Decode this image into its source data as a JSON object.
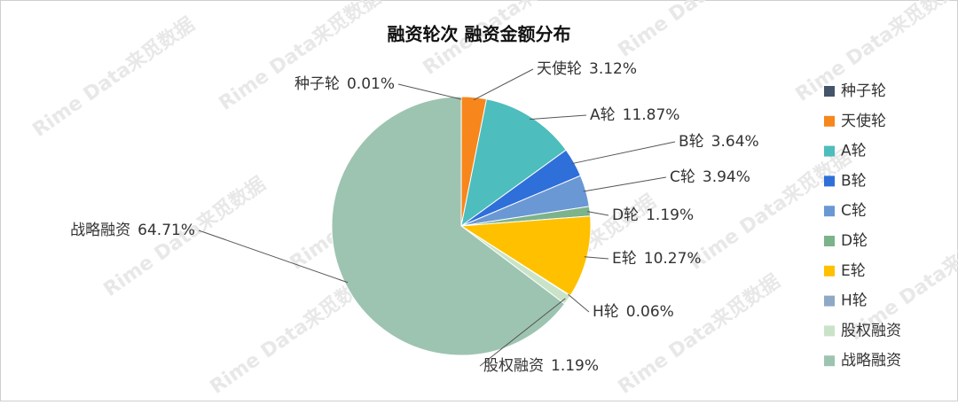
{
  "chart_data": {
    "type": "pie",
    "title": "融资轮次 融资金额分布",
    "watermark": "Rime Data来觅数据",
    "categories": [
      "种子轮",
      "天使轮",
      "A轮",
      "B轮",
      "C轮",
      "D轮",
      "E轮",
      "H轮",
      "股权融资",
      "战略融资"
    ],
    "values": [
      0.01,
      3.12,
      11.87,
      3.64,
      3.94,
      1.19,
      10.27,
      0.06,
      1.19,
      64.71
    ],
    "value_labels": [
      "0.01%",
      "3.12%",
      "11.87%",
      "3.64%",
      "3.94%",
      "1.19%",
      "10.27%",
      "0.06%",
      "1.19%",
      "64.71%"
    ],
    "colors": [
      "#44546a",
      "#f7861c",
      "#4dbdbd",
      "#2f6fd9",
      "#6a98d4",
      "#7cb38a",
      "#ffc000",
      "#8fa8c6",
      "#c9e3c9",
      "#9dc4b1"
    ],
    "legend": "right"
  }
}
